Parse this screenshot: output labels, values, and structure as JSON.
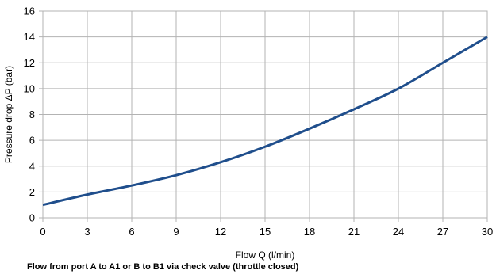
{
  "chart_data": {
    "type": "line",
    "xlabel": "Flow Q (l/min)",
    "ylabel": "Pressure drop ΔP (bar)",
    "xlim": [
      0,
      30
    ],
    "ylim": [
      0,
      16
    ],
    "x_ticks": [
      "0",
      "3",
      "6",
      "9",
      "12",
      "15",
      "18",
      "21",
      "24",
      "27",
      "30"
    ],
    "y_ticks": [
      "0",
      "2",
      "4",
      "6",
      "8",
      "10",
      "12",
      "14",
      "16"
    ],
    "grid": true,
    "legend": "none",
    "line_color": "#1f4e8c",
    "series": [
      {
        "x": [
          0,
          3,
          6,
          9,
          12,
          15,
          18,
          21,
          24,
          27,
          30
        ],
        "y": [
          1.0,
          1.8,
          2.5,
          3.3,
          4.3,
          5.5,
          6.9,
          8.4,
          10.0,
          12.0,
          14.0
        ]
      }
    ]
  },
  "caption": "Flow from port A to A1 or B to B1 via check valve (throttle closed)"
}
